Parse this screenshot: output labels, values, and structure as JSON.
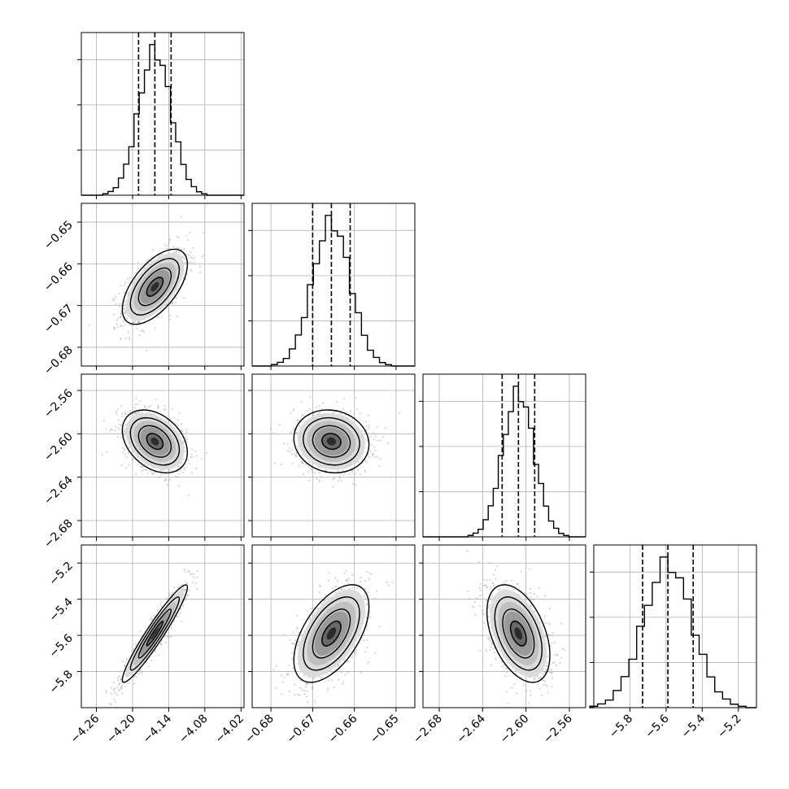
{
  "chart_data": {
    "type": "corner",
    "parameters": [
      {
        "range": [
          -4.285,
          -4.015
        ],
        "ticks": [
          -4.26,
          -4.2,
          -4.14,
          -4.08,
          -4.02
        ],
        "tick_labels": [
          "−4.26",
          "−4.20",
          "−4.14",
          "−4.08",
          "−4.02"
        ],
        "mean": -4.163,
        "sd": 0.027,
        "quantiles": [
          -4.19,
          -4.163,
          -4.136
        ]
      },
      {
        "range": [
          -0.6845,
          -0.6455
        ],
        "ticks": [
          -0.68,
          -0.67,
          -0.66,
          -0.65
        ],
        "tick_labels": [
          "−0.68",
          "−0.67",
          "−0.66",
          "−0.65"
        ],
        "mean": -0.6655,
        "sd": 0.0045,
        "quantiles": [
          -0.67,
          -0.6655,
          -0.661
        ]
      },
      {
        "range": [
          -2.695,
          -2.545
        ],
        "ticks": [
          -2.68,
          -2.64,
          -2.6,
          -2.56
        ],
        "tick_labels": [
          "−2.68",
          "−2.64",
          "−2.60",
          "−2.56"
        ],
        "mean": -2.607,
        "sd": 0.0145,
        "quantiles": [
          -2.622,
          -2.607,
          -2.592
        ]
      },
      {
        "range": [
          -6.0,
          -5.1
        ],
        "ticks": [
          -5.8,
          -5.6,
          -5.4,
          -5.2
        ],
        "tick_labels": [
          "−5.8",
          "−5.6",
          "−5.4",
          "−5.2"
        ],
        "mean": -5.59,
        "sd": 0.135,
        "quantiles": [
          -5.73,
          -5.59,
          -5.45
        ]
      }
    ],
    "correlations": [
      [
        1.0,
        0.6,
        -0.35,
        0.95
      ],
      [
        0.6,
        1.0,
        -0.1,
        0.55
      ],
      [
        -0.35,
        -0.1,
        1.0,
        -0.45
      ],
      [
        0.95,
        0.55,
        -0.45,
        1.0
      ]
    ],
    "quantile_levels": [
      0.16,
      0.5,
      0.84
    ],
    "contour_levels_sigma": [
      0.5,
      1.0,
      1.5,
      2.0
    ],
    "histogram_bins": 20,
    "grid": true,
    "style": {
      "line_color": "#000000",
      "grid_color": "#b0b0b0",
      "point_color": "#a0a0a0"
    }
  }
}
